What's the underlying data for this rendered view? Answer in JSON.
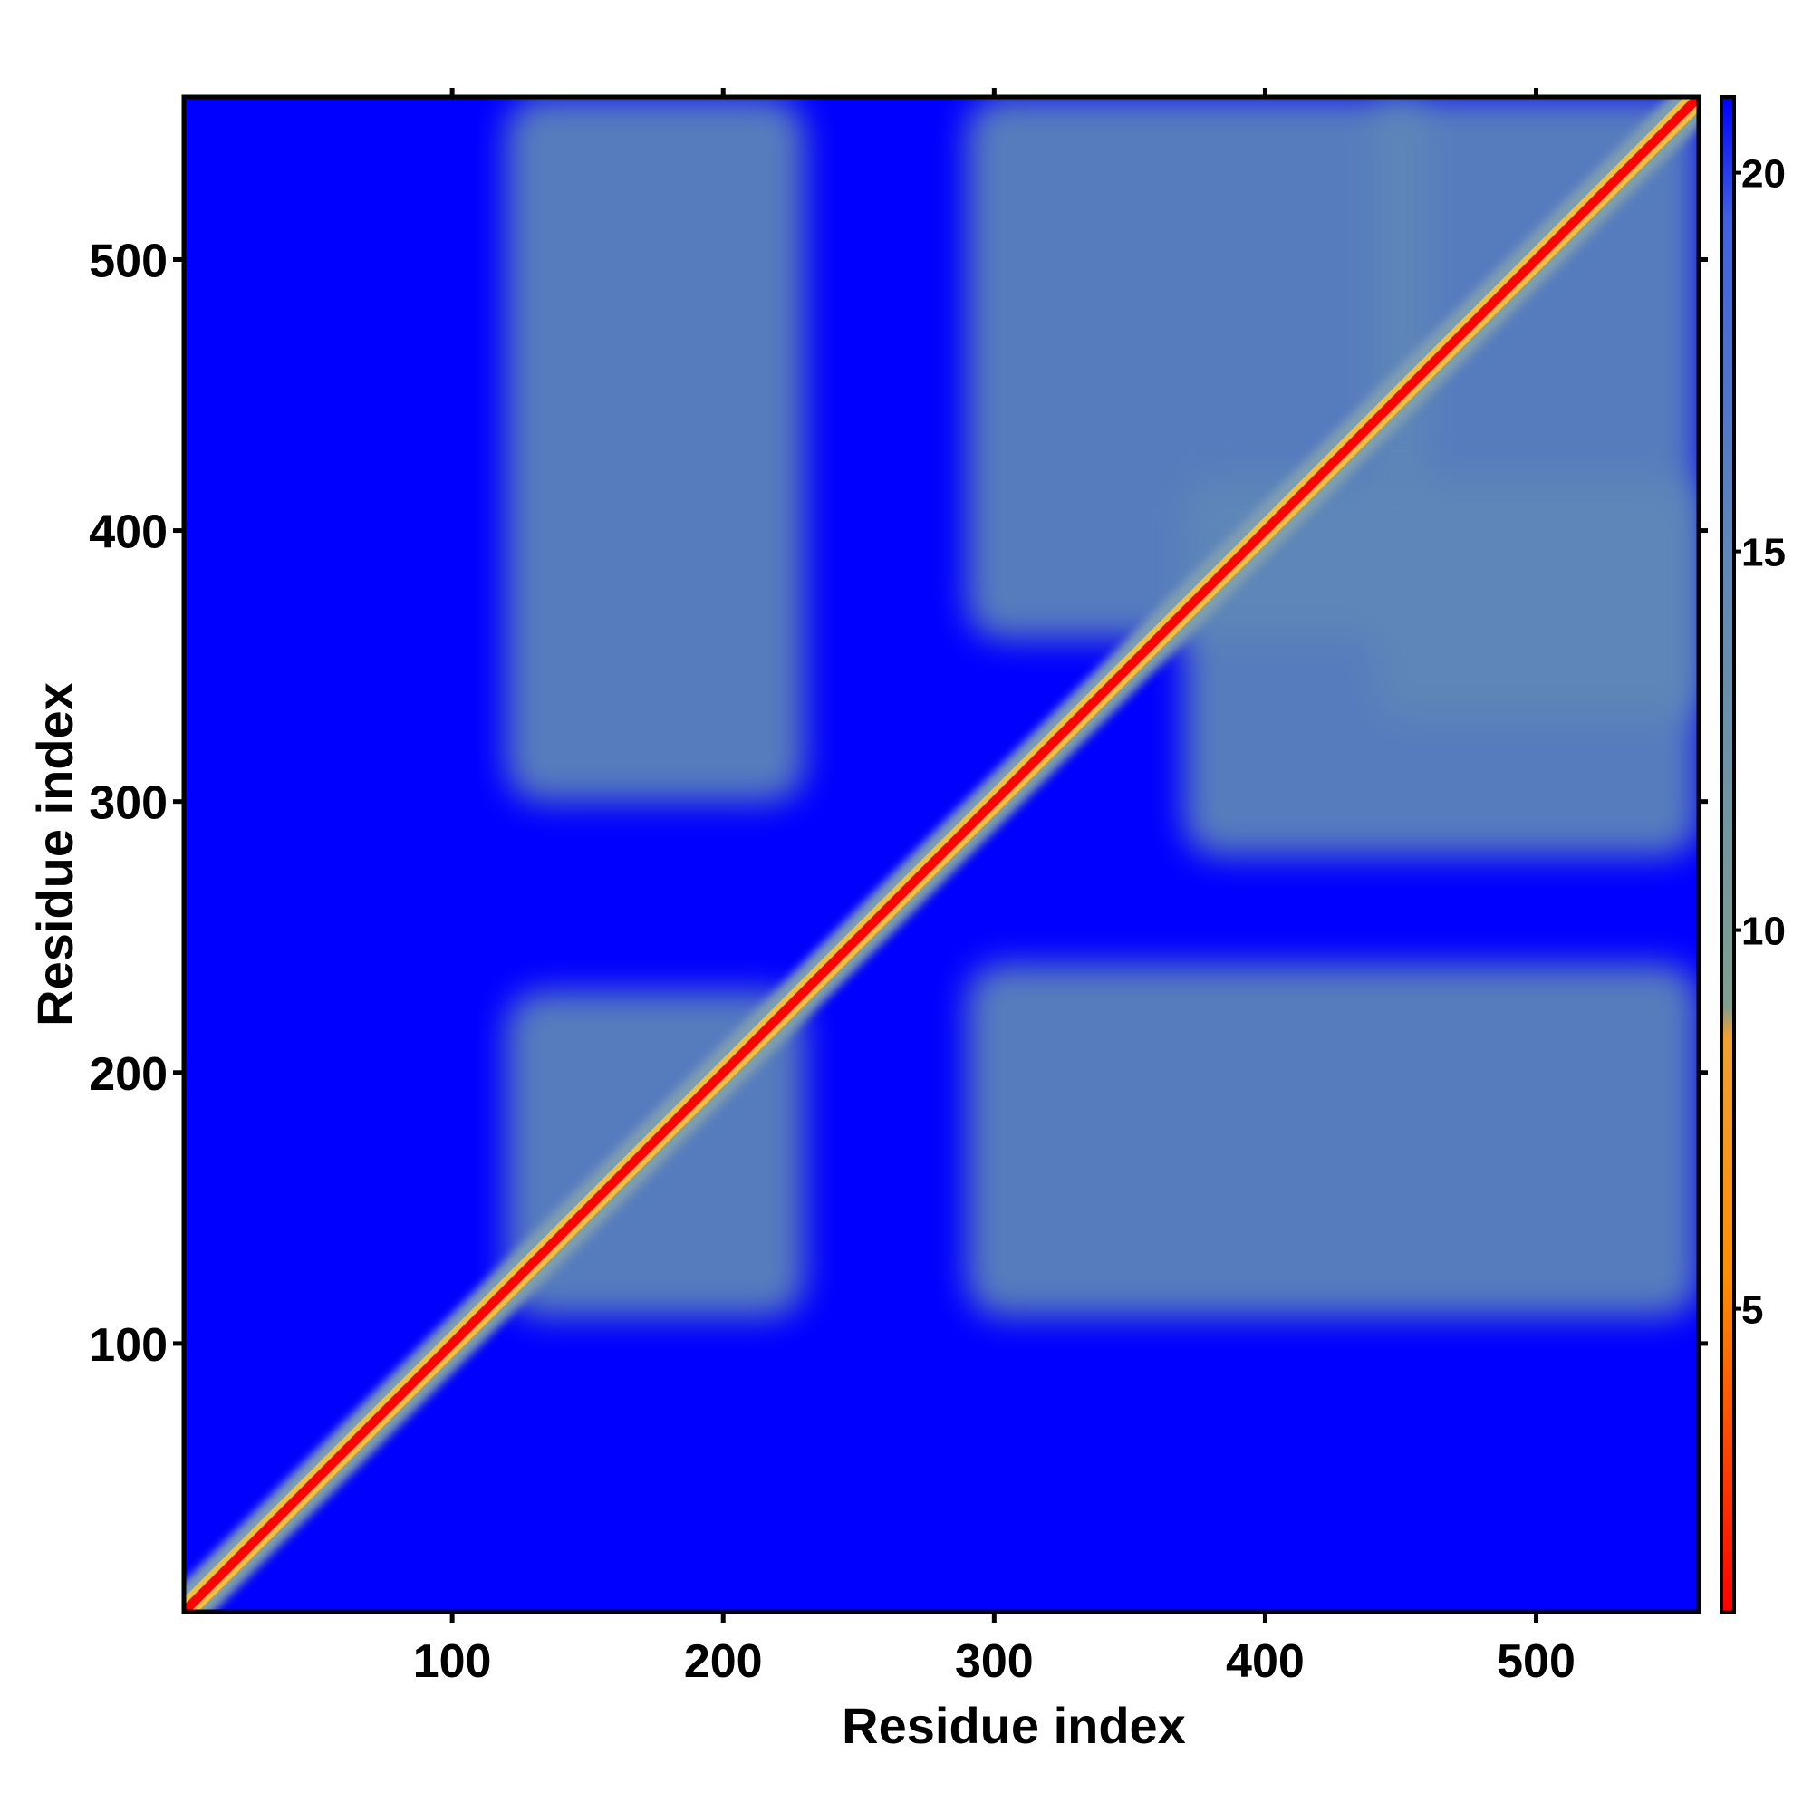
{
  "chart_data": {
    "type": "heatmap",
    "title": "",
    "xlabel": "Residue index",
    "ylabel": "Residue index",
    "xlim": [
      1,
      560
    ],
    "ylim": [
      1,
      560
    ],
    "x_ticks": [
      100,
      200,
      300,
      400,
      500
    ],
    "y_ticks": [
      100,
      200,
      300,
      400,
      500
    ],
    "colorbar": {
      "ticks": [
        5,
        10,
        15,
        20
      ],
      "range": [
        1,
        21
      ],
      "colors": [
        "#ff0000",
        "#ff8c00",
        "#f0c040",
        "#7f9fa0",
        "#5f87b8",
        "#0000ff"
      ]
    },
    "background_color": "#0000ff",
    "contact_color": "#5f87b8",
    "diagonal_color": "#ff0000",
    "contact_regions": [
      {
        "x": [
          120,
          230
        ],
        "y": [
          300,
          560
        ]
      },
      {
        "x": [
          290,
          460
        ],
        "y": [
          360,
          560
        ]
      },
      {
        "x": [
          440,
          560
        ],
        "y": [
          330,
          560
        ]
      },
      {
        "x": [
          370,
          560
        ],
        "y": [
          280,
          420
        ]
      },
      {
        "x": [
          120,
          230
        ],
        "y": [
          110,
          230
        ]
      },
      {
        "x": [
          290,
          560
        ],
        "y": [
          110,
          240
        ]
      }
    ],
    "diagonal": {
      "from": 1,
      "to": 560
    }
  }
}
